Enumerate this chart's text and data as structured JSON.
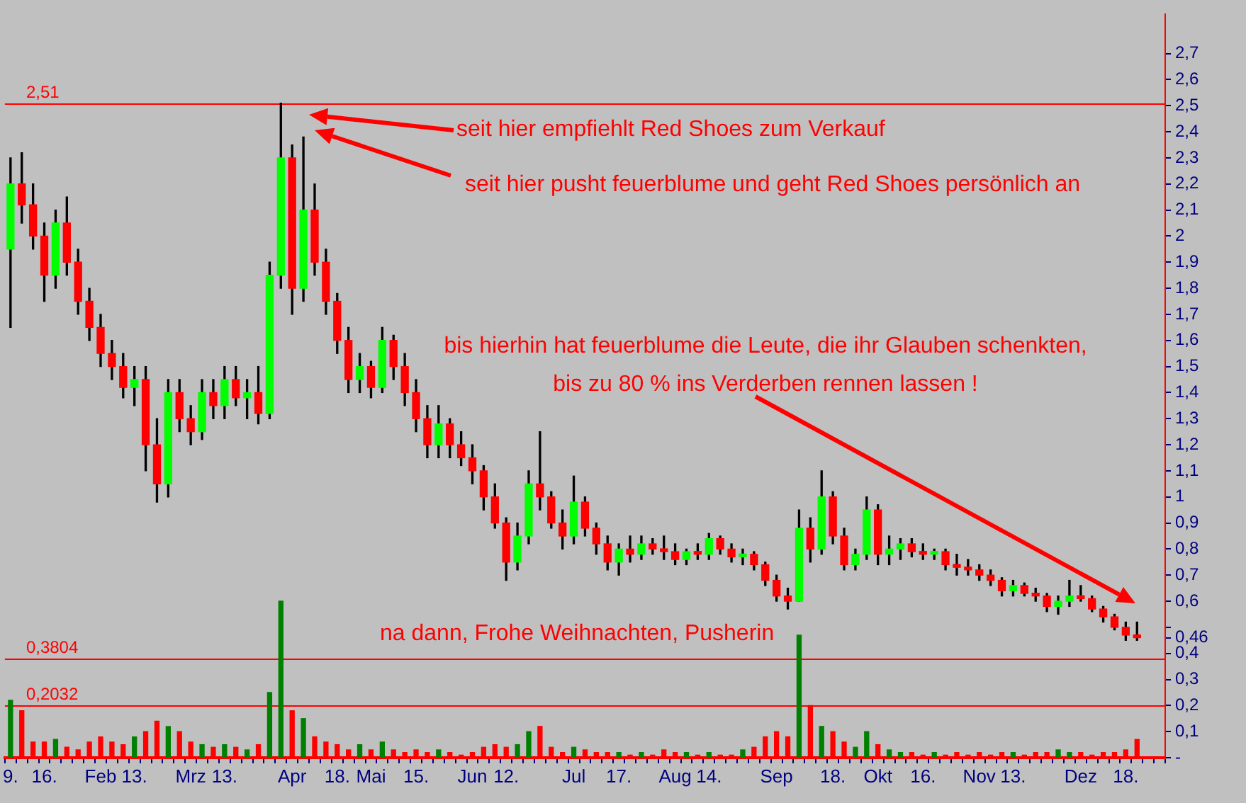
{
  "chart_data": {
    "type": "candlestick",
    "categories": [
      "9.",
      null,
      null,
      "16.",
      null,
      null,
      null,
      null,
      "Feb",
      null,
      null,
      "13.",
      null,
      null,
      null,
      null,
      "Mrz",
      null,
      null,
      "13.",
      null,
      null,
      null,
      null,
      null,
      "Apr",
      null,
      null,
      null,
      "18.",
      null,
      null,
      "Mai",
      null,
      null,
      null,
      "15.",
      null,
      null,
      null,
      null,
      "Jun",
      null,
      null,
      "12.",
      null,
      null,
      null,
      null,
      null,
      "Jul",
      null,
      null,
      null,
      "17.",
      null,
      null,
      null,
      null,
      "Aug",
      null,
      null,
      "14.",
      null,
      null,
      null,
      null,
      null,
      "Sep",
      null,
      null,
      null,
      null,
      "18.",
      null,
      null,
      null,
      "Okt",
      null,
      null,
      null,
      "16.",
      null,
      null,
      null,
      null,
      "Nov",
      null,
      null,
      "13.",
      null,
      null,
      null,
      null,
      null,
      "Dez",
      null,
      null,
      null,
      "18.",
      null,
      null,
      null
    ],
    "ohlc": [
      [
        1.95,
        2.3,
        1.65,
        2.2
      ],
      [
        2.2,
        2.32,
        2.05,
        2.12
      ],
      [
        2.12,
        2.2,
        1.95,
        2.0
      ],
      [
        2.0,
        2.05,
        1.75,
        1.85
      ],
      [
        1.85,
        2.1,
        1.8,
        2.05
      ],
      [
        2.05,
        2.15,
        1.85,
        1.9
      ],
      [
        1.9,
        1.95,
        1.7,
        1.75
      ],
      [
        1.75,
        1.8,
        1.6,
        1.65
      ],
      [
        1.65,
        1.7,
        1.5,
        1.55
      ],
      [
        1.55,
        1.6,
        1.45,
        1.5
      ],
      [
        1.5,
        1.55,
        1.38,
        1.42
      ],
      [
        1.42,
        1.5,
        1.35,
        1.45
      ],
      [
        1.45,
        1.5,
        1.1,
        1.2
      ],
      [
        1.2,
        1.3,
        0.98,
        1.05
      ],
      [
        1.05,
        1.45,
        1.0,
        1.4
      ],
      [
        1.4,
        1.45,
        1.25,
        1.3
      ],
      [
        1.3,
        1.35,
        1.2,
        1.25
      ],
      [
        1.25,
        1.45,
        1.22,
        1.4
      ],
      [
        1.4,
        1.45,
        1.3,
        1.35
      ],
      [
        1.35,
        1.5,
        1.3,
        1.45
      ],
      [
        1.45,
        1.5,
        1.35,
        1.38
      ],
      [
        1.38,
        1.45,
        1.3,
        1.4
      ],
      [
        1.4,
        1.5,
        1.28,
        1.32
      ],
      [
        1.32,
        1.9,
        1.3,
        1.85
      ],
      [
        1.85,
        2.51,
        1.8,
        2.3
      ],
      [
        2.3,
        2.35,
        1.7,
        1.8
      ],
      [
        1.8,
        2.38,
        1.75,
        2.1
      ],
      [
        2.1,
        2.2,
        1.85,
        1.9
      ],
      [
        1.9,
        1.95,
        1.7,
        1.75
      ],
      [
        1.75,
        1.78,
        1.55,
        1.6
      ],
      [
        1.6,
        1.65,
        1.4,
        1.45
      ],
      [
        1.45,
        1.55,
        1.4,
        1.5
      ],
      [
        1.5,
        1.52,
        1.38,
        1.42
      ],
      [
        1.42,
        1.65,
        1.4,
        1.6
      ],
      [
        1.6,
        1.62,
        1.45,
        1.5
      ],
      [
        1.5,
        1.55,
        1.35,
        1.4
      ],
      [
        1.4,
        1.45,
        1.25,
        1.3
      ],
      [
        1.3,
        1.35,
        1.15,
        1.2
      ],
      [
        1.2,
        1.35,
        1.15,
        1.28
      ],
      [
        1.28,
        1.3,
        1.15,
        1.2
      ],
      [
        1.2,
        1.25,
        1.12,
        1.15
      ],
      [
        1.15,
        1.2,
        1.05,
        1.1
      ],
      [
        1.1,
        1.12,
        0.95,
        1.0
      ],
      [
        1.0,
        1.05,
        0.88,
        0.9
      ],
      [
        0.9,
        0.92,
        0.68,
        0.75
      ],
      [
        0.75,
        0.9,
        0.72,
        0.85
      ],
      [
        0.85,
        1.1,
        0.82,
        1.05
      ],
      [
        1.05,
        1.25,
        0.95,
        1.0
      ],
      [
        1.0,
        1.02,
        0.88,
        0.9
      ],
      [
        0.9,
        0.95,
        0.8,
        0.85
      ],
      [
        0.85,
        1.08,
        0.82,
        0.98
      ],
      [
        0.98,
        1.0,
        0.85,
        0.88
      ],
      [
        0.88,
        0.9,
        0.78,
        0.82
      ],
      [
        0.82,
        0.85,
        0.72,
        0.75
      ],
      [
        0.75,
        0.82,
        0.7,
        0.8
      ],
      [
        0.8,
        0.85,
        0.75,
        0.78
      ],
      [
        0.78,
        0.85,
        0.76,
        0.82
      ],
      [
        0.82,
        0.84,
        0.78,
        0.8
      ],
      [
        0.8,
        0.85,
        0.76,
        0.79
      ],
      [
        0.79,
        0.82,
        0.74,
        0.76
      ],
      [
        0.76,
        0.8,
        0.74,
        0.79
      ],
      [
        0.79,
        0.82,
        0.76,
        0.78
      ],
      [
        0.78,
        0.86,
        0.76,
        0.84
      ],
      [
        0.84,
        0.85,
        0.78,
        0.8
      ],
      [
        0.8,
        0.82,
        0.75,
        0.77
      ],
      [
        0.77,
        0.8,
        0.74,
        0.78
      ],
      [
        0.78,
        0.79,
        0.72,
        0.74
      ],
      [
        0.74,
        0.75,
        0.66,
        0.68
      ],
      [
        0.68,
        0.7,
        0.6,
        0.62
      ],
      [
        0.62,
        0.65,
        0.57,
        0.6
      ],
      [
        0.6,
        0.95,
        0.6,
        0.88
      ],
      [
        0.88,
        0.92,
        0.75,
        0.8
      ],
      [
        0.8,
        1.1,
        0.78,
        1.0
      ],
      [
        1.0,
        1.02,
        0.82,
        0.85
      ],
      [
        0.85,
        0.88,
        0.72,
        0.74
      ],
      [
        0.74,
        0.8,
        0.72,
        0.78
      ],
      [
        0.78,
        1.0,
        0.76,
        0.95
      ],
      [
        0.95,
        0.97,
        0.74,
        0.78
      ],
      [
        0.78,
        0.85,
        0.74,
        0.8
      ],
      [
        0.8,
        0.84,
        0.76,
        0.82
      ],
      [
        0.82,
        0.84,
        0.77,
        0.79
      ],
      [
        0.79,
        0.82,
        0.76,
        0.78
      ],
      [
        0.78,
        0.8,
        0.76,
        0.79
      ],
      [
        0.79,
        0.8,
        0.72,
        0.74
      ],
      [
        0.74,
        0.78,
        0.7,
        0.73
      ],
      [
        0.73,
        0.76,
        0.7,
        0.72
      ],
      [
        0.72,
        0.74,
        0.68,
        0.7
      ],
      [
        0.7,
        0.72,
        0.66,
        0.68
      ],
      [
        0.68,
        0.69,
        0.62,
        0.64
      ],
      [
        0.64,
        0.68,
        0.62,
        0.66
      ],
      [
        0.66,
        0.67,
        0.62,
        0.63
      ],
      [
        0.63,
        0.65,
        0.6,
        0.62
      ],
      [
        0.62,
        0.63,
        0.56,
        0.58
      ],
      [
        0.58,
        0.62,
        0.55,
        0.6
      ],
      [
        0.6,
        0.68,
        0.58,
        0.62
      ],
      [
        0.62,
        0.66,
        0.6,
        0.61
      ],
      [
        0.61,
        0.62,
        0.56,
        0.57
      ],
      [
        0.57,
        0.58,
        0.52,
        0.54
      ],
      [
        0.54,
        0.55,
        0.49,
        0.5
      ],
      [
        0.5,
        0.52,
        0.45,
        0.47
      ],
      [
        0.47,
        0.52,
        0.45,
        0.46
      ],
      null,
      null
    ],
    "colors": [
      "#00ff00",
      "#ff0000",
      "#ff0000",
      "#ff0000",
      "#00ff00",
      "#ff0000",
      "#ff0000",
      "#ff0000",
      "#ff0000",
      "#ff0000",
      "#ff0000",
      "#00ff00",
      "#ff0000",
      "#ff0000",
      "#00ff00",
      "#ff0000",
      "#ff0000",
      "#00ff00",
      "#ff0000",
      "#00ff00",
      "#ff0000",
      "#00ff00",
      "#ff0000",
      "#00ff00",
      "#00ff00",
      "#ff0000",
      "#00ff00",
      "#ff0000",
      "#ff0000",
      "#ff0000",
      "#ff0000",
      "#00ff00",
      "#ff0000",
      "#00ff00",
      "#ff0000",
      "#ff0000",
      "#ff0000",
      "#ff0000",
      "#00ff00",
      "#ff0000",
      "#ff0000",
      "#ff0000",
      "#ff0000",
      "#ff0000",
      "#ff0000",
      "#00ff00",
      "#00ff00",
      "#ff0000",
      "#ff0000",
      "#ff0000",
      "#00ff00",
      "#ff0000",
      "#ff0000",
      "#ff0000",
      "#00ff00",
      "#ff0000",
      "#00ff00",
      "#ff0000",
      "#ff0000",
      "#ff0000",
      "#00ff00",
      "#ff0000",
      "#00ff00",
      "#ff0000",
      "#ff0000",
      "#00ff00",
      "#ff0000",
      "#ff0000",
      "#ff0000",
      "#ff0000",
      "#00ff00",
      "#ff0000",
      "#00ff00",
      "#ff0000",
      "#ff0000",
      "#00ff00",
      "#00ff00",
      "#ff0000",
      "#00ff00",
      "#00ff00",
      "#ff0000",
      "#ff0000",
      "#00ff00",
      "#ff0000",
      "#ff0000",
      "#ff0000",
      "#ff0000",
      "#ff0000",
      "#ff0000",
      "#00ff00",
      "#ff0000",
      "#ff0000",
      "#ff0000",
      "#00ff00",
      "#00ff00",
      "#ff0000",
      "#ff0000",
      "#ff0000",
      "#ff0000",
      "#ff0000",
      "#ff0000",
      null,
      null
    ],
    "series": [
      {
        "type": "bar",
        "values": [
          0.22,
          0.18,
          0.06,
          0.06,
          0.07,
          0.04,
          0.03,
          0.06,
          0.08,
          0.06,
          0.05,
          0.08,
          0.1,
          0.14,
          0.12,
          0.1,
          0.06,
          0.05,
          0.04,
          0.05,
          0.04,
          0.03,
          0.05,
          0.25,
          0.6,
          0.18,
          0.15,
          0.08,
          0.06,
          0.05,
          0.03,
          0.05,
          0.03,
          0.06,
          0.03,
          0.02,
          0.03,
          0.02,
          0.03,
          0.02,
          0.01,
          0.02,
          0.04,
          0.05,
          0.04,
          0.05,
          0.1,
          0.12,
          0.04,
          0.02,
          0.04,
          0.03,
          0.02,
          0.02,
          0.02,
          0.01,
          0.02,
          0.01,
          0.03,
          0.02,
          0.02,
          0.01,
          0.02,
          0.01,
          0.01,
          0.03,
          0.04,
          0.08,
          0.1,
          0.08,
          0.47,
          0.2,
          0.12,
          0.1,
          0.06,
          0.04,
          0.1,
          0.05,
          0.03,
          0.02,
          0.02,
          0.01,
          0.02,
          0.01,
          0.02,
          0.01,
          0.02,
          0.01,
          0.02,
          0.02,
          0.01,
          0.02,
          0.02,
          0.03,
          0.02,
          0.02,
          0.01,
          0.02,
          0.02,
          0.03,
          0.07,
          null,
          null
        ],
        "colors": [
          "#008000",
          "#ff0000",
          "#ff0000",
          "#ff0000",
          "#008000",
          "#ff0000",
          "#ff0000",
          "#ff0000",
          "#ff0000",
          "#ff0000",
          "#ff0000",
          "#008000",
          "#ff0000",
          "#ff0000",
          "#008000",
          "#ff0000",
          "#ff0000",
          "#008000",
          "#ff0000",
          "#008000",
          "#ff0000",
          "#008000",
          "#ff0000",
          "#008000",
          "#008000",
          "#ff0000",
          "#008000",
          "#ff0000",
          "#ff0000",
          "#ff0000",
          "#ff0000",
          "#008000",
          "#ff0000",
          "#008000",
          "#ff0000",
          "#ff0000",
          "#ff0000",
          "#ff0000",
          "#008000",
          "#ff0000",
          "#ff0000",
          "#ff0000",
          "#ff0000",
          "#ff0000",
          "#ff0000",
          "#008000",
          "#008000",
          "#ff0000",
          "#ff0000",
          "#ff0000",
          "#008000",
          "#ff0000",
          "#ff0000",
          "#ff0000",
          "#008000",
          "#ff0000",
          "#008000",
          "#ff0000",
          "#ff0000",
          "#ff0000",
          "#008000",
          "#ff0000",
          "#008000",
          "#ff0000",
          "#ff0000",
          "#008000",
          "#ff0000",
          "#ff0000",
          "#ff0000",
          "#ff0000",
          "#008000",
          "#ff0000",
          "#008000",
          "#ff0000",
          "#ff0000",
          "#008000",
          "#008000",
          "#ff0000",
          "#008000",
          "#008000",
          "#ff0000",
          "#ff0000",
          "#008000",
          "#ff0000",
          "#ff0000",
          "#ff0000",
          "#ff0000",
          "#ff0000",
          "#ff0000",
          "#008000",
          "#ff0000",
          "#ff0000",
          "#ff0000",
          "#008000",
          "#008000",
          "#ff0000",
          "#ff0000",
          "#ff0000",
          "#ff0000",
          "#ff0000",
          "#ff0000",
          null,
          null
        ]
      }
    ],
    "ylim": [
      0,
      2.85
    ],
    "yticks": [
      {
        "value": 0,
        "label": "-"
      },
      {
        "value": 0.1,
        "label": "0,1"
      },
      {
        "value": 0.2,
        "label": "0,2"
      },
      {
        "value": 0.3,
        "label": "0,3"
      },
      {
        "value": 0.4,
        "label": "0,4"
      },
      {
        "value": 0.46,
        "label": "0,46"
      },
      {
        "value": 0.5,
        "label": null
      },
      {
        "value": 0.6,
        "label": "0,6"
      },
      {
        "value": 0.7,
        "label": "0,7"
      },
      {
        "value": 0.8,
        "label": "0,8"
      },
      {
        "value": 0.9,
        "label": "0,9"
      },
      1,
      {
        "value": 1.1,
        "label": "1,1"
      },
      {
        "value": 1.2,
        "label": "1,2"
      },
      {
        "value": 1.3,
        "label": "1,3"
      },
      {
        "value": 1.4,
        "label": "1,4"
      },
      {
        "value": 1.5,
        "label": "1,5"
      },
      {
        "value": 1.6,
        "label": "1,6"
      },
      {
        "value": 1.7,
        "label": "1,7"
      },
      {
        "value": 1.8,
        "label": "1,8"
      },
      {
        "value": 1.9,
        "label": "1,9"
      },
      2,
      {
        "value": 2.1,
        "label": "2,1"
      },
      {
        "value": 2.2,
        "label": "2,2"
      },
      {
        "value": 2.3,
        "label": "2,3"
      },
      {
        "value": 2.4,
        "label": "2,4"
      },
      {
        "value": 2.5,
        "label": "2,5"
      },
      {
        "value": 2.6,
        "label": "2,6"
      },
      {
        "value": 2.7,
        "label": "2,7"
      }
    ],
    "ref_lines": [
      {
        "axis": "y",
        "value": 2.51,
        "label": "2,51",
        "color": "#ff0000"
      },
      {
        "axis": "y",
        "value": 0.3804,
        "label": "0,3804",
        "color": "#ff0000"
      },
      {
        "axis": "y",
        "value": 0.2032,
        "label": "0,2032",
        "color": "#ff0000"
      }
    ],
    "annotations": [
      "seit hier empfiehlt Red Shoes zum Verkauf",
      "seit hier pusht feuerblume und geht Red Shoes persönlich an",
      "bis hierhin hat feuerblume die Leute, die ihr Glauben schenkten,\nbis zu 80 % ins Verderben rennen lassen !",
      "na dann, Frohe Weihnachten, Pusherin"
    ],
    "grid": false,
    "legend": false
  }
}
